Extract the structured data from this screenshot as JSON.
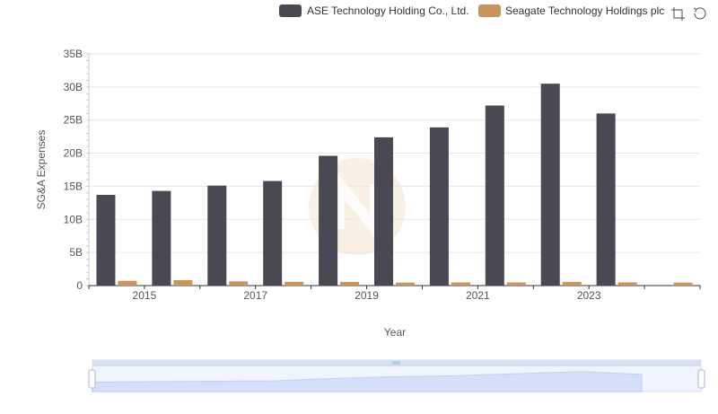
{
  "chart_data": {
    "type": "bar",
    "xlabel": "Year",
    "ylabel": "SG&A Expenses",
    "ylim": [
      0,
      35000000000
    ],
    "yticks": [
      {
        "value": 0,
        "label": "0"
      },
      {
        "value": 5000000000,
        "label": "5B"
      },
      {
        "value": 10000000000,
        "label": "10B"
      },
      {
        "value": 15000000000,
        "label": "15B"
      },
      {
        "value": 20000000000,
        "label": "20B"
      },
      {
        "value": 25000000000,
        "label": "25B"
      },
      {
        "value": 30000000000,
        "label": "30B"
      },
      {
        "value": 35000000000,
        "label": "35B"
      }
    ],
    "categories": [
      "2014",
      "2015",
      "2016",
      "2017",
      "2018",
      "2019",
      "2020",
      "2021",
      "2022",
      "2023",
      "2024"
    ],
    "xtick_labels": [
      "2015",
      "2017",
      "2019",
      "2021",
      "2023"
    ],
    "grid": true,
    "legend_position": "top-right",
    "series": [
      {
        "name": "ASE Technology Holding Co., Ltd.",
        "color": "#4a4953",
        "values": [
          13700000000,
          14300000000,
          15100000000,
          15800000000,
          19600000000,
          22400000000,
          23900000000,
          27200000000,
          30500000000,
          26000000000,
          null
        ]
      },
      {
        "name": "Seagate Technology Holdings plc",
        "color": "#c9955e",
        "values": [
          720000000,
          820000000,
          640000000,
          580000000,
          560000000,
          450000000,
          480000000,
          480000000,
          560000000,
          490000000,
          450000000
        ]
      }
    ]
  },
  "toolbar": {
    "icons": [
      "crop-icon",
      "restore-icon"
    ]
  }
}
